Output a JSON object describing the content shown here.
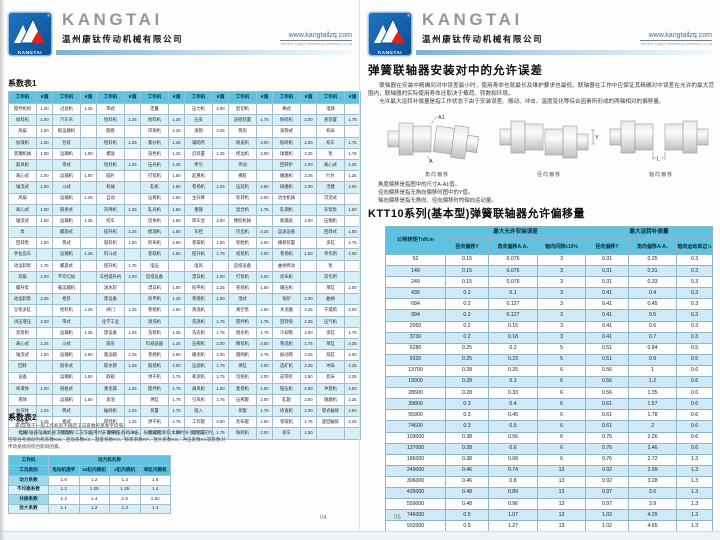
{
  "brand": {
    "logo_text": "KANGTAI",
    "reg_mark": "®",
    "wordmark": "KANGTAI",
    "company_cn": "温州康钛传动机械有限公司",
    "website": "www.kangtailzq.com",
    "website_sub": "Wenzhou Kangtai Transmission Machinery Co.,Ltd"
  },
  "left_page": {
    "page_number": "04",
    "table1": {
      "title": "系数表1",
      "header_machine": "工作机",
      "header_k": "K值",
      "rows": [
        [
          "搅拌机构",
          "1.00",
          "过滤机",
          "1.25",
          "带式",
          "",
          "定量",
          "",
          "压力机",
          "2.00",
          "剪切机",
          "",
          "棒式",
          "",
          "电梯",
          ""
        ],
        [
          "加料机",
          "1.00",
          "汽车吊",
          "",
          "粒料机",
          "1.25",
          "给料机",
          "1.25",
          "压皮",
          "",
          "送给装置",
          "1.75",
          "粉碎机",
          "2.00",
          "查装置",
          "1.75"
        ],
        [
          "风扇",
          "1.00",
          "板运输机",
          "",
          "圆盘",
          "",
          "印染机",
          "1.25",
          "滚筒",
          "2.25",
          "筒形",
          "",
          "滚筒式",
          "",
          "机床",
          ""
        ],
        [
          "加煤机",
          "1.00",
          "包装",
          "",
          "粒料机",
          "1.25",
          "紊纱机",
          "1.25",
          "辅助传",
          "",
          "剥皮机",
          "2.00",
          "粉碎机",
          "2.00",
          "校车",
          "1.75"
        ],
        [
          "装罐机械",
          "1.00",
          "运输机",
          "1.00",
          "模放",
          "",
          "染色机",
          "1.25",
          "启装置",
          "1.25",
          "修边机",
          "2.00",
          "球磨机",
          "2.25",
          "泵",
          "1.75"
        ],
        [
          "鼓风机",
          "",
          "带式",
          "",
          "粒料机",
          "1.25",
          "压光机",
          "1.25",
          "牵引",
          "",
          "传动",
          "",
          "回转炉",
          "2.00",
          "离心式",
          "1.25"
        ],
        [
          "离心式",
          "1.00",
          "运输机",
          "1.00",
          "圆片",
          "",
          "打浆机",
          "1.50",
          "起重机",
          "",
          "橡胶",
          "",
          "碾磨机",
          "2.25",
          "叶片",
          "1.25"
        ],
        [
          "轴流式",
          "1.50",
          "斗式",
          "",
          "机械",
          "",
          "轧机",
          "1.50",
          "卷扬机",
          "1.25",
          "压延机",
          "2.50",
          "研磨机",
          "2.00",
          "活塞",
          "2.00"
        ],
        [
          "风扇",
          "",
          "运输机",
          "1.25",
          "自动",
          "",
          "压榨机",
          "1.50",
          "主升降",
          "",
          "轮转机",
          "2.00",
          "冶金机械",
          "",
          "可逆式",
          ""
        ],
        [
          "离心式",
          "1.00",
          "链条式",
          "",
          "升降机",
          "1.25",
          "轧光机",
          "1.50",
          "重锤",
          "",
          "混合机",
          "1.75",
          "轧钢机",
          "",
          "灰浆泵",
          "1.50"
        ],
        [
          "轴流式",
          "1.50",
          "运输机",
          "1.25",
          "绞车",
          "",
          "切条机",
          "1.50",
          "转车台",
          "2.00",
          "橡胶机械",
          "",
          "板输送",
          "2.00",
          "压缩机",
          ""
        ],
        [
          "泵",
          "",
          "螺旋式",
          "",
          "提升机",
          "1.25",
          "梳理机",
          "1.50",
          "车挡",
          "",
          "挤出机",
          "2.25",
          "运送设备",
          "",
          "回转式",
          "1.50"
        ],
        [
          "回转泵",
          "1.50",
          "筒式",
          "",
          "鼓料机",
          "1.50",
          "织布机",
          "1.50",
          "卷取机",
          "1.50",
          "轮胎机",
          "2.00",
          "横移装置",
          "",
          "多缸",
          "1.75"
        ],
        [
          "手拉齿车",
          "",
          "运输机",
          "1.25",
          "料斗式",
          "",
          "卷取机",
          "1.50",
          "提升机",
          "1.75",
          "纸浆机",
          "2.00",
          "卷扬机",
          "1.50",
          "单作用",
          "2.00"
        ],
        [
          "动运卸泵",
          "1.75",
          "螺旋式",
          "",
          "提升机",
          "1.75",
          "电压",
          "",
          "电风",
          "",
          "造纸设备",
          "",
          "曲柄传动",
          "",
          "泵",
          ""
        ],
        [
          "双级",
          "2.00",
          "不均匀加",
          "",
          "车挡提升机",
          "2.00",
          "造纸设备",
          "",
          "漂白机",
          "1.00",
          "打浆机",
          "2.00",
          "验布机",
          "",
          "双作用",
          ""
        ],
        [
          "螺杆泵",
          "",
          "载运输机",
          "",
          "滚水轮",
          "",
          "漂白机",
          "1.00",
          "校平机",
          "1.25",
          "卷绕机",
          "1.50",
          "碾压机",
          "",
          "单缸",
          "2.00"
        ],
        [
          "动运卸泵",
          "2.25",
          "柜装",
          "",
          "理设备",
          "",
          "校平机",
          "1.25",
          "卷绕机",
          "1.50",
          "湿式",
          "",
          "窑炉",
          "2.00",
          "曲柄",
          ""
        ],
        [
          "豆浆多缸",
          "",
          "给料机",
          "1.25",
          "闸门",
          "1.25",
          "卷绕机",
          "1.50",
          "清洗机",
          "",
          "真空泵",
          "1.50",
          "水泥磨",
          "2.25",
          "干燥筒",
          "2.00"
        ],
        [
          "试压增压",
          "2.00",
          "带式",
          "",
          "化学工业",
          "",
          "清洗机",
          "",
          "洗涤机",
          "1.75",
          "搅拌机",
          "1.75",
          "回转窑",
          "2.25",
          "压气机",
          ""
        ],
        [
          "泥浆机",
          "",
          "运输机",
          "1.25",
          "理设备",
          "1.25",
          "洗浆机",
          "1.25",
          "洗衣机",
          "1.75",
          "脱水机",
          "1.75",
          "冷却筒",
          "2.00",
          "多缸",
          "1.75"
        ],
        [
          "离心式",
          "1.25",
          "斗式",
          "",
          "吸形",
          "",
          "料规送器",
          "1.25",
          "压榨机",
          "2.00",
          "精浆机",
          "2.00",
          "筛选机",
          "1.75",
          "单缸",
          "2.25"
        ],
        [
          "轴流式",
          "1.50",
          "运输机",
          "1.50",
          "集运箱",
          "1.25",
          "卷绕机",
          "1.50",
          "碾泥机",
          "2.00",
          "圆网机",
          "1.75",
          "振动筛",
          "2.25",
          "双缸",
          "2.00"
        ],
        [
          "回转",
          "",
          "链条式",
          "",
          "取水那",
          "1.25",
          "煅烧机",
          "2.00",
          "压滤机",
          "1.75",
          "烘缸",
          "2.00",
          "选矿机",
          "2.25",
          "冲床",
          "2.25"
        ],
        [
          "设备",
          "",
          "运输机",
          "1.50",
          "取箱",
          "",
          "烘干机",
          "1.75",
          "和泥机",
          "1.75",
          "切纸机",
          "2.00",
          "皮带轮",
          "1.50",
          "剪床",
          "2.25"
        ],
        [
          "纯液体",
          "1.00",
          "链板式",
          "",
          "重金属",
          "1.25",
          "搅拌机",
          "1.75",
          "通风机",
          "1.50",
          "复卷机",
          "1.50",
          "锻压机",
          "2.50",
          "冲剪机",
          "2.50"
        ],
        [
          "液体",
          "",
          "运输机",
          "1.50",
          "发泡",
          "",
          "烘缸",
          "1.75",
          "引风机",
          "1.75",
          "压榨辊",
          "2.00",
          "轧辊",
          "2.50",
          "锤磨机",
          "2.25"
        ],
        [
          "加浓体",
          "1.25",
          "筒式",
          "",
          "破碎机",
          "1.25",
          "装置",
          "1.75",
          "吸入",
          "",
          "伏辊",
          "1.75",
          "矫直机",
          "2.00",
          "鄂式破碎",
          "2.50"
        ],
        [
          "变密度",
          "1.25",
          "板式",
          "",
          "搅拌机",
          "1.25",
          "烘干机",
          "1.75",
          "工作辊",
          "2.50",
          "毛布辊",
          "1.50",
          "卷取机",
          "1.75",
          "旋回破碎",
          "2.25"
        ],
        [
          "机械",
          "1.00",
          "给料机",
          "1.25",
          "开清棉机",
          "1.00",
          "搬运机",
          "2.00",
          "动装置",
          "1.75",
          "粉碎机",
          "2.00",
          "校车",
          "1.50",
          "",
          ""
        ]
      ]
    },
    "table2": {
      "title": "系数表2",
      "notes": [
        "表2是基于一般工作机的不确定工况系数的基本平均值。",
        "当联轴器在较高要求或复杂工况下应用时，基于设备机冲击、振动和需要较大瞬时补偿的工况时，",
        "应综合考虑动力机系数KW、启动系数KZ、温度系数KO、频率系数KF、放大系数KS、冲击系数KA等系数对",
        "传动系统的综合影响因素。"
      ],
      "header_workmachine": "工作机",
      "header_power": "动力机名称",
      "header_condition": "工况类别",
      "power_cols": [
        "电动机透平",
        "≥4缸内燃机",
        "2缸内燃机",
        "单缸内燃机"
      ],
      "rows": [
        [
          "动力系数",
          "1.0",
          "1.2",
          "1.4",
          "1.6"
        ],
        [
          "不均衡系数",
          "1.2",
          "1.25",
          "1.35",
          "1.4"
        ],
        [
          "共振系数",
          "1.2",
          "1.4",
          "1.5",
          "1.62"
        ],
        [
          "放大系数",
          "1.1",
          "1.2",
          "1.3",
          "1.4"
        ]
      ]
    }
  },
  "right_page": {
    "page_number": "05",
    "title": "弹簧联轴器安装对中的允许误差",
    "paragraphs": [
      "联轴器在安装中精确到对中误差最小时，使用寿命也就最长及维护要求也最低。联轴器在工作中应保证其精确对中误差在允许的最大范围内，联轴器的实际使用寿命还取决于载荷、转数和环境。",
      "允许最大运转补偿量是指工作状态下由于安装误差、振动、冲击、温度变化等综合因素所形成的两轴相对的偏移量。"
    ],
    "diagrams": [
      {
        "caption": "角向偏移",
        "ann_top": "A1",
        "ann_bottom": "A"
      },
      {
        "caption": "径向偏移",
        "ann_side": "Y"
      },
      {
        "caption": "轴向偏移",
        "ann_bottom": "L"
      }
    ],
    "notes": [
      "角度偏移是指图中的尺寸A-A1值。",
      "径向偏移是指无角向偏移时图中的Y值。",
      "轴向偏移是指无角向、径向偏移时的轴向运动量。"
    ],
    "section_title": "KTT10系列(基本型)弹簧联轴器允许偏移量",
    "ktt10": {
      "col_torque": "公称转矩TnN.m",
      "group1": "最大允许安装误差",
      "group2": "最大运转补偿量",
      "sub_headers": [
        "径向偏移Y",
        "角向偏移A-A₁",
        "轴向间隙±10%",
        "径向偏移Y",
        "角向偏移A-A₁",
        "轴向运动单边½"
      ],
      "rows": [
        [
          "52",
          "0.15",
          "0.076",
          "3",
          "0.31",
          "0.25",
          "0.3"
        ],
        [
          "149",
          "0.15",
          "0.076",
          "3",
          "0.31",
          "0.31",
          "0.3"
        ],
        [
          "249",
          "0.15",
          "0.076",
          "3",
          "0.31",
          "0.33",
          "0.3"
        ],
        [
          "435",
          "0.2",
          "0.1",
          "3",
          "0.41",
          "0.4",
          "0.3"
        ],
        [
          "684",
          "0.2",
          "0.127",
          "3",
          "0.41",
          "0.45",
          "0.3"
        ],
        [
          "994",
          "0.2",
          "0.127",
          "3",
          "0.41",
          "0.5",
          "0.3"
        ],
        [
          "2050",
          "0.2",
          "0.15",
          "3",
          "0.41",
          "0.6",
          "0.3"
        ],
        [
          "3730",
          "0.2",
          "0.18",
          "3",
          "0.41",
          "0.7",
          "0.3"
        ],
        [
          "6280",
          "0.25",
          "0.2",
          "5",
          "0.51",
          "0.84",
          "0.5"
        ],
        [
          "9320",
          "0.25",
          "0.23",
          "5",
          "0.51",
          "0.9",
          "0.5"
        ],
        [
          "13700",
          "0.28",
          "0.25",
          "6",
          "0.56",
          "1",
          "0.6"
        ],
        [
          "19900",
          "0.28",
          "0.3",
          "6",
          "0.56",
          "1.2",
          "0.6"
        ],
        [
          "28600",
          "0.28",
          "0.33",
          "6",
          "0.56",
          "1.35",
          "0.6"
        ],
        [
          "39800",
          "0.3",
          "0.4",
          "6",
          "0.61",
          "1.57",
          "0.6"
        ],
        [
          "55900",
          "0.3",
          "0.45",
          "6",
          "0.61",
          "1.78",
          "0.6"
        ],
        [
          "74600",
          "0.3",
          "0.5",
          "6",
          "0.61",
          "2",
          "0.6"
        ],
        [
          "103000",
          "0.38",
          "0.56",
          "6",
          "0.76",
          "2.26",
          "0.6"
        ],
        [
          "137000",
          "0.38",
          "0.6",
          "6",
          "0.76",
          "2.46",
          "0.6"
        ],
        [
          "186000",
          "0.38",
          "0.68",
          "6",
          "0.76",
          "2.72",
          "1.3"
        ],
        [
          "249000",
          "0.46",
          "0.74",
          "13",
          "0.92",
          "2.99",
          "1.3"
        ],
        [
          "306000",
          "0.46",
          "0.8",
          "13",
          "0.92",
          "3.28",
          "1.3"
        ],
        [
          "435000",
          "0.48",
          "0.89",
          "13",
          "0.97",
          "3.6",
          "1.3"
        ],
        [
          "559000",
          "0.48",
          "0.96",
          "13",
          "0.97",
          "3.9",
          "1.3"
        ],
        [
          "746000",
          "0.5",
          "1.07",
          "13",
          "1.02",
          "4.29",
          "1.3"
        ],
        [
          "932000",
          "0.5",
          "1.27",
          "13",
          "1.02",
          "4.65",
          "1.3"
        ],
        [
          "1130000",
          "0.62",
          "1.35",
          "20",
          "1.25",
          "5.2",
          "2.0"
        ],
        [
          "1320000",
          "0.62",
          "1.46",
          "20",
          "1.25",
          "5.68",
          "2.0"
        ]
      ]
    }
  }
}
